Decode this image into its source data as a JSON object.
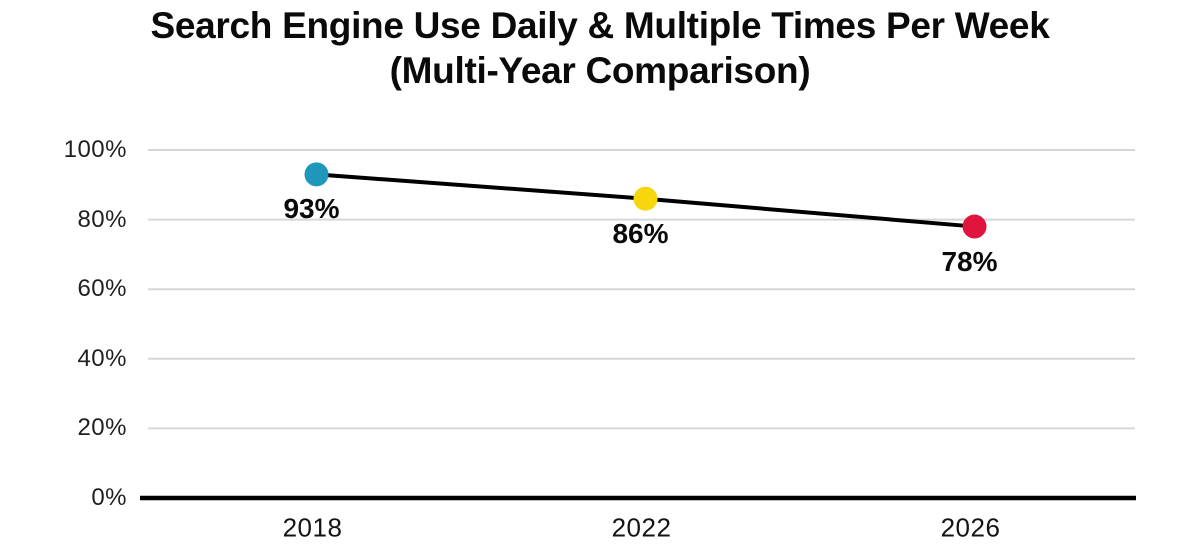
{
  "title": {
    "line1": "Search Engine Use Daily & Multiple Times Per Week",
    "line2": "(Multi-Year Comparison)"
  },
  "chart_data": {
    "type": "line",
    "title": "Search Engine Use Daily & Multiple Times Per Week (Multi-Year Comparison)",
    "categories": [
      "2018",
      "2022",
      "2026"
    ],
    "values": [
      93,
      86,
      78
    ],
    "point_labels": [
      "93%",
      "86%",
      "78%"
    ],
    "point_colors": [
      "#1e97ba",
      "#f8d60e",
      "#e0143c"
    ],
    "line_color": "#000000",
    "xlabel": "",
    "ylabel": "",
    "ylim": [
      0,
      100
    ],
    "yticks": [
      0,
      20,
      40,
      60,
      80,
      100
    ],
    "ytick_labels": [
      "0%",
      "20%",
      "40%",
      "60%",
      "80%",
      "100%"
    ],
    "grid": "horizontal",
    "legend": "none",
    "colors": {
      "gridline": "#d6d6d6",
      "axis_line": "#000000",
      "title_text": "#0a0a0a",
      "tick_text": "#1f1f1f"
    }
  }
}
